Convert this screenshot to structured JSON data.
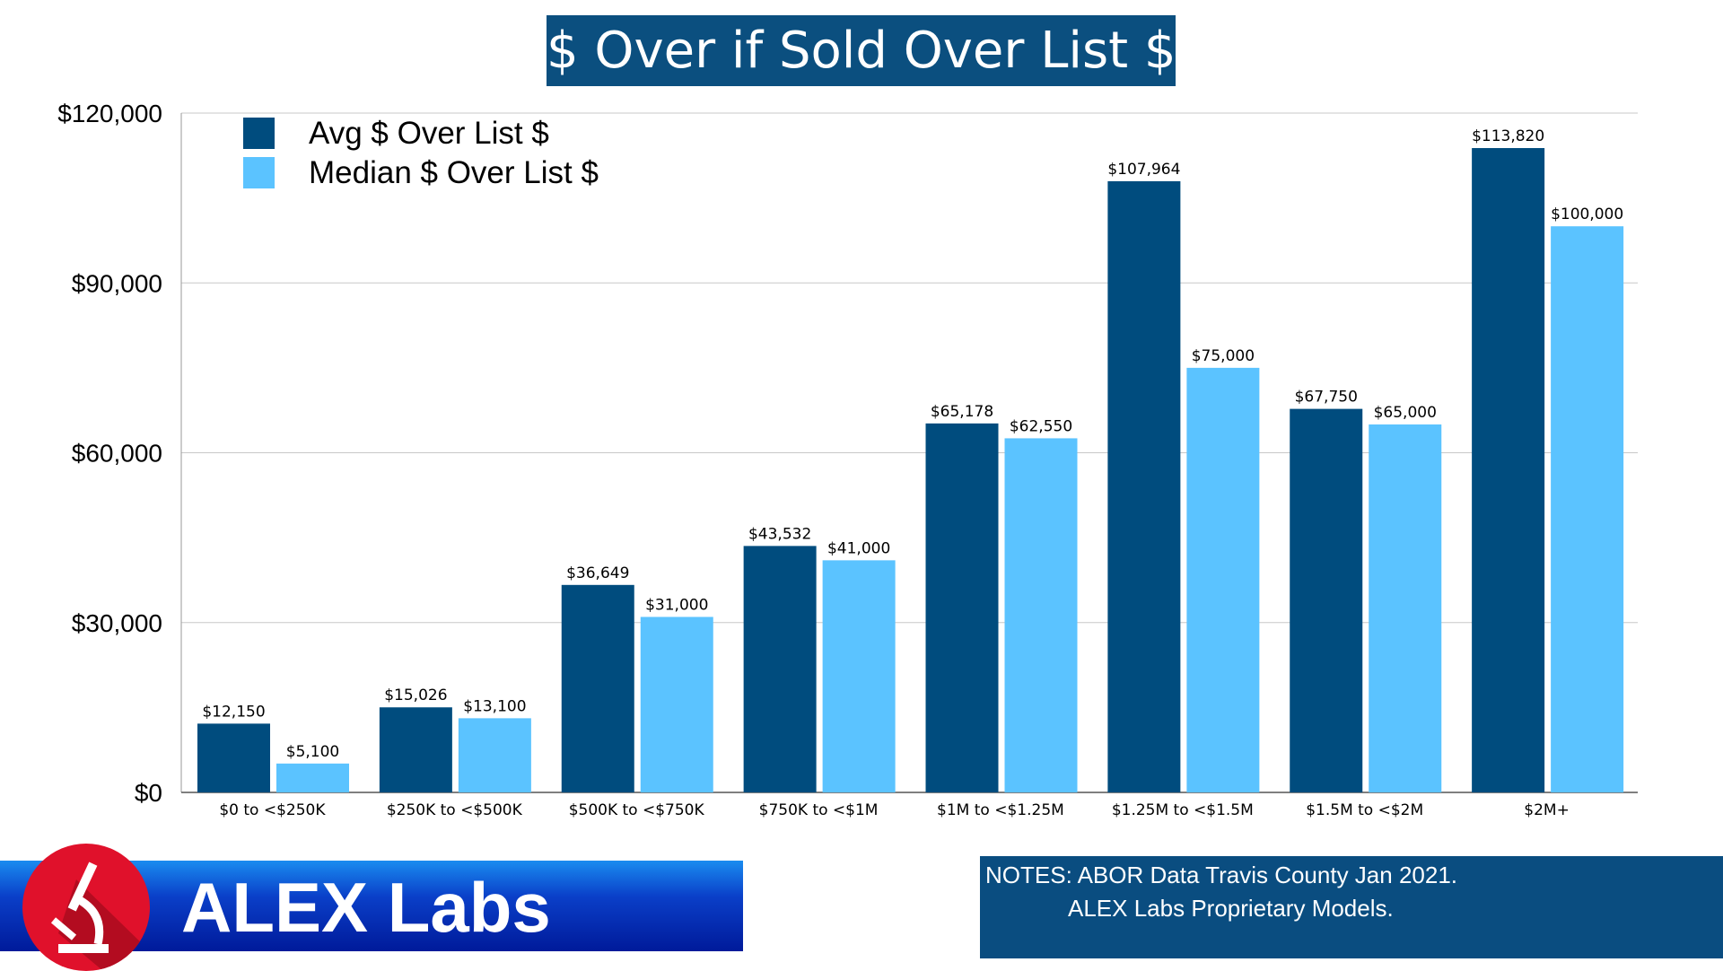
{
  "chart_data": {
    "type": "bar",
    "title": "$ Over if Sold Over List $",
    "categories": [
      "$0 to <$250K",
      "$250K to <$500K",
      "$500K to <$750K",
      "$750K to <$1M",
      "$1M to <$1.25M",
      "$1.25M to <$1.5M",
      "$1.5M to <$2M",
      "$2M+"
    ],
    "series": [
      {
        "name": "Avg $ Over List $",
        "color": "#004c7e",
        "values": [
          12150,
          15026,
          36649,
          43532,
          65178,
          107964,
          67750,
          113820
        ],
        "labels": [
          "$12,150",
          "$15,026",
          "$36,649",
          "$43,532",
          "$65,178",
          "$107,964",
          "$67,750",
          "$113,820"
        ]
      },
      {
        "name": "Median $ Over List $",
        "color": "#5bc3ff",
        "values": [
          5100,
          13100,
          31000,
          41000,
          62550,
          75000,
          65000,
          100000
        ],
        "labels": [
          "$5,100",
          "$13,100",
          "$31,000",
          "$41,000",
          "$62,550",
          "$75,000",
          "$65,000",
          "$100,000"
        ]
      }
    ],
    "ylim": [
      0,
      120000
    ],
    "yticks": [
      0,
      30000,
      60000,
      90000,
      120000
    ],
    "ytick_labels": [
      "$0",
      "$30,000",
      "$60,000",
      "$90,000",
      "$120,000"
    ],
    "grid": true,
    "legend": "top-left",
    "xlabel": "",
    "ylabel": ""
  },
  "logo": {
    "text": "ALEX Labs"
  },
  "notes": {
    "line1": "NOTES: ABOR Data Travis County Jan 2021.",
    "line2": "ALEX Labs Proprietary Models."
  }
}
